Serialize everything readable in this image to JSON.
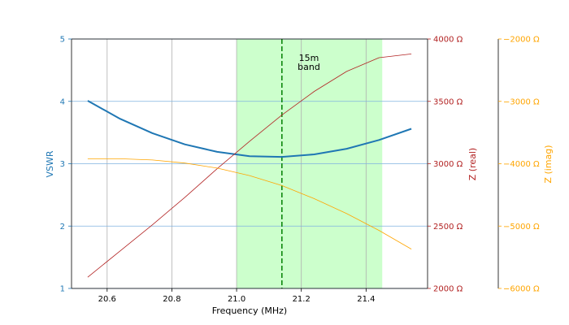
{
  "chart_data": {
    "type": "line",
    "xlabel": "Frequency (MHz)",
    "xlim": [
      20.49,
      21.59
    ],
    "x_ticks": [
      20.6,
      20.8,
      21.0,
      21.2,
      21.4
    ],
    "x_tick_labels": [
      "20.6",
      "20.8",
      "21.0",
      "21.2",
      "21.4"
    ],
    "grid": true,
    "axes": {
      "vswr": {
        "label": "VSWR",
        "ylim": [
          1,
          5
        ],
        "ticks": [
          1,
          2,
          3,
          4,
          5
        ],
        "tick_labels": [
          "1",
          "2",
          "3",
          "4",
          "5"
        ],
        "color": "#1f77b4"
      },
      "z_real": {
        "label": "Z (real)",
        "ylim": [
          2000,
          4000
        ],
        "ticks": [
          2000,
          2500,
          3000,
          3500,
          4000
        ],
        "tick_labels": [
          "2000 Ω",
          "2500 Ω",
          "3000 Ω",
          "3500 Ω",
          "4000 Ω"
        ],
        "color": "#b22222"
      },
      "z_imag": {
        "label": "Z (imag)",
        "ylim": [
          -6000,
          -2000
        ],
        "ticks": [
          -6000,
          -5000,
          -4000,
          -3000,
          -2000
        ],
        "tick_labels": [
          "−6000 Ω",
          "−5000 Ω",
          "−4000 Ω",
          "−3000 Ω",
          "−2000 Ω"
        ],
        "color": "#ffa500"
      }
    },
    "x": [
      20.54,
      20.64,
      20.74,
      20.84,
      20.94,
      21.04,
      21.14,
      21.24,
      21.34,
      21.44,
      21.54
    ],
    "series": [
      {
        "axis": "vswr",
        "color": "#1f77b4",
        "values": [
          4.01,
          3.72,
          3.49,
          3.31,
          3.19,
          3.12,
          3.11,
          3.15,
          3.24,
          3.38,
          3.56
        ]
      },
      {
        "axis": "z_real",
        "color": "#b22222",
        "values": [
          2090,
          2300,
          2510,
          2730,
          2960,
          3180,
          3390,
          3580,
          3740,
          3850,
          3880
        ]
      },
      {
        "axis": "z_imag",
        "color": "#ffa500",
        "values": [
          -3920,
          -3920,
          -3940,
          -3990,
          -4070,
          -4190,
          -4350,
          -4560,
          -4800,
          -5070,
          -5370
        ]
      }
    ],
    "band": {
      "x_start": 21.0,
      "x_end": 21.45,
      "color": "#ccffcc"
    },
    "vline": {
      "x": 21.14,
      "color": "#008000",
      "style": "dashed"
    },
    "annotation": {
      "lines": [
        "15m",
        "band"
      ],
      "x": 21.22,
      "y": 4.65
    }
  }
}
